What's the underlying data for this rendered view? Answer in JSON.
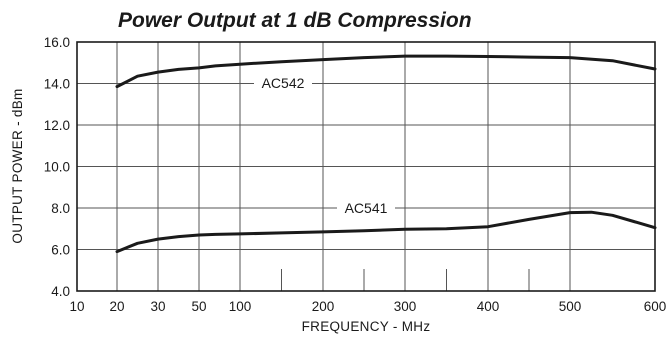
{
  "chart_data": {
    "type": "line",
    "title": "Power Output at 1 dB Compression",
    "xlabel": "FREQUENCY - MHz",
    "ylabel": "OUTPUT POWER - dBm",
    "x_tick_labels": [
      "10",
      "20",
      "30",
      "50",
      "100",
      "200",
      "300",
      "400",
      "500",
      "600"
    ],
    "x_tick_values": [
      10,
      20,
      30,
      50,
      100,
      200,
      300,
      400,
      500,
      600
    ],
    "minor_tick_values": [
      150,
      250,
      350,
      450
    ],
    "y_tick_labels": [
      "4.0",
      "6.0",
      "8.0",
      "10.0",
      "12.0",
      "14.0",
      "16.0"
    ],
    "y_tick_values": [
      4,
      6,
      8,
      10,
      12,
      14,
      16
    ],
    "ylim": [
      4,
      16
    ],
    "grid": true,
    "line_color": "#1a1a1a",
    "grid_color": "#555555",
    "series": [
      {
        "name": "AC542",
        "x": [
          20,
          25,
          30,
          40,
          50,
          70,
          100,
          150,
          200,
          250,
          300,
          350,
          400,
          450,
          500,
          550,
          600
        ],
        "y": [
          13.85,
          14.35,
          14.55,
          14.68,
          14.75,
          14.85,
          14.93,
          15.05,
          15.15,
          15.25,
          15.32,
          15.32,
          15.3,
          15.27,
          15.25,
          15.1,
          14.7
        ]
      },
      {
        "name": "AC541",
        "x": [
          20,
          25,
          30,
          40,
          50,
          70,
          100,
          150,
          200,
          250,
          300,
          350,
          400,
          450,
          500,
          525,
          550,
          575,
          600
        ],
        "y": [
          5.9,
          6.3,
          6.5,
          6.62,
          6.7,
          6.73,
          6.75,
          6.8,
          6.85,
          6.9,
          6.98,
          7.0,
          7.1,
          7.45,
          7.78,
          7.8,
          7.65,
          7.35,
          7.05
        ]
      }
    ]
  }
}
